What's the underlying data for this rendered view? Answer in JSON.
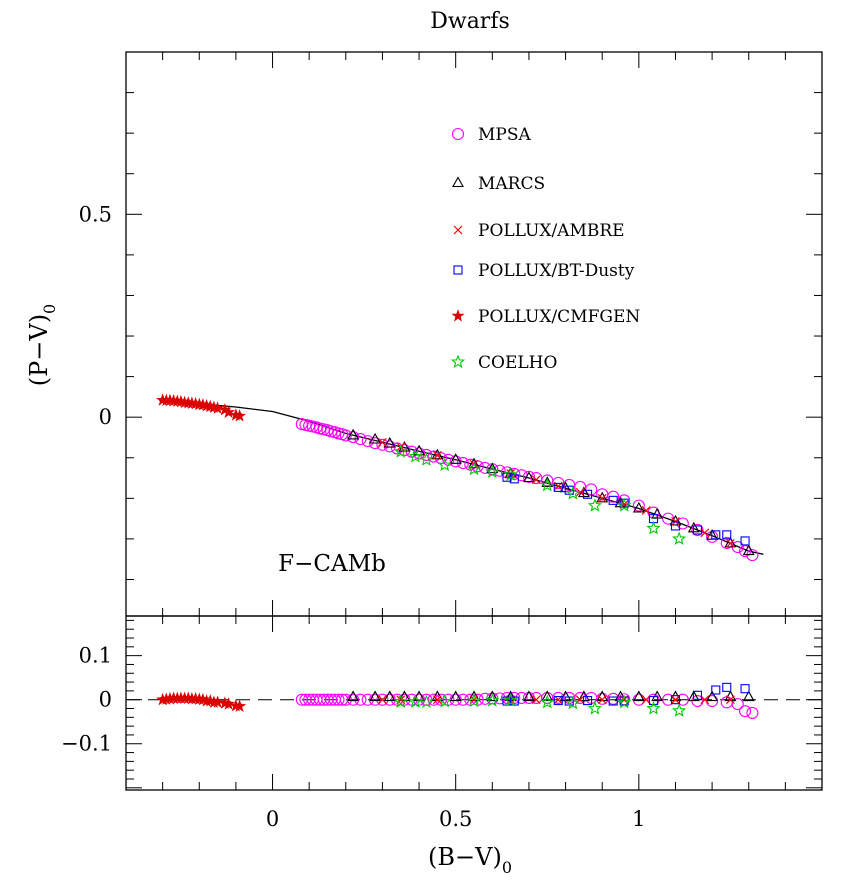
{
  "chart_data": {
    "type": "scatter",
    "title": "Dwarfs",
    "xlabel": "(B−V)",
    "xlabel_sub": "0",
    "xlim": [
      -0.4,
      1.5
    ],
    "xticks": [
      {
        "v": 0,
        "label": "0"
      },
      {
        "v": 0.5,
        "label": "0.5"
      },
      {
        "v": 1,
        "label": "1"
      }
    ],
    "panels": {
      "main": {
        "ylabel": "(P−V)",
        "ylabel_sub": "0",
        "ylim": [
          -0.49,
          0.9
        ],
        "yticks": [
          {
            "v": 0,
            "label": "0"
          },
          {
            "v": 0.5,
            "label": "0.5"
          }
        ],
        "annotation": "F−CAMb"
      },
      "residual": {
        "ylim": [
          -0.205,
          0.19
        ],
        "yticks": [
          {
            "v": 0.1,
            "label": "0.1"
          },
          {
            "v": 0,
            "label": "0"
          },
          {
            "v": -0.1,
            "label": "−0.1"
          }
        ],
        "zero_line": "dashed"
      }
    },
    "fit_curve": {
      "x": [
        -0.31,
        -0.2,
        -0.1,
        0.0,
        0.1,
        0.2,
        0.3,
        0.4,
        0.5,
        0.6,
        0.7,
        0.8,
        0.9,
        1.0,
        1.1,
        1.2,
        1.3,
        1.34
      ],
      "y": [
        0.042,
        0.033,
        0.025,
        0.014,
        -0.01,
        -0.04,
        -0.062,
        -0.084,
        -0.105,
        -0.128,
        -0.15,
        -0.175,
        -0.2,
        -0.225,
        -0.257,
        -0.292,
        -0.33,
        -0.338
      ]
    },
    "series": [
      {
        "name": "MPSA",
        "marker": "circle",
        "color": "#ff00ff",
        "x": [
          0.08,
          0.09,
          0.1,
          0.11,
          0.12,
          0.13,
          0.14,
          0.15,
          0.16,
          0.17,
          0.18,
          0.19,
          0.2,
          0.22,
          0.24,
          0.26,
          0.28,
          0.3,
          0.32,
          0.34,
          0.36,
          0.38,
          0.4,
          0.42,
          0.44,
          0.46,
          0.48,
          0.5,
          0.52,
          0.54,
          0.56,
          0.58,
          0.6,
          0.62,
          0.64,
          0.66,
          0.68,
          0.7,
          0.72,
          0.75,
          0.78,
          0.81,
          0.84,
          0.87,
          0.9,
          0.93,
          0.96,
          1.0,
          1.04,
          1.08,
          1.12,
          1.16,
          1.2,
          1.24,
          1.27,
          1.29,
          1.31
        ],
        "y": [
          -0.017,
          -0.019,
          -0.021,
          -0.023,
          -0.025,
          -0.028,
          -0.03,
          -0.032,
          -0.035,
          -0.037,
          -0.04,
          -0.042,
          -0.045,
          -0.049,
          -0.054,
          -0.059,
          -0.064,
          -0.068,
          -0.072,
          -0.077,
          -0.081,
          -0.085,
          -0.089,
          -0.093,
          -0.097,
          -0.101,
          -0.105,
          -0.109,
          -0.113,
          -0.117,
          -0.121,
          -0.125,
          -0.128,
          -0.132,
          -0.136,
          -0.14,
          -0.143,
          -0.147,
          -0.15,
          -0.156,
          -0.162,
          -0.167,
          -0.172,
          -0.178,
          -0.19,
          -0.196,
          -0.205,
          -0.218,
          -0.235,
          -0.25,
          -0.262,
          -0.278,
          -0.295,
          -0.31,
          -0.32,
          -0.33,
          -0.34
        ],
        "residual": [
          0.0,
          0.0,
          0.0,
          0.0,
          0.0,
          0.0,
          0.0,
          0.0,
          0.0,
          0.0,
          0.0,
          0.0,
          0.0,
          0.0,
          0.0,
          0.0,
          0.0,
          0.0,
          0.0,
          0.0,
          0.0,
          0.0,
          0.0,
          0.0,
          0.0,
          0.0,
          0.0,
          0.0,
          0.0,
          0.0,
          0.0,
          0.002,
          0.003,
          0.003,
          0.004,
          0.004,
          0.004,
          0.004,
          0.004,
          0.004,
          0.004,
          0.004,
          0.004,
          0.004,
          0.002,
          0.002,
          0.001,
          0.0,
          0.0,
          0.0,
          0.0,
          -0.003,
          -0.003,
          -0.006,
          -0.01,
          -0.026,
          -0.03
        ]
      },
      {
        "name": "MARCS",
        "marker": "triangle",
        "color": "#000000",
        "x": [
          0.22,
          0.28,
          0.32,
          0.36,
          0.4,
          0.45,
          0.5,
          0.55,
          0.6,
          0.65,
          0.7,
          0.75,
          0.8,
          0.85,
          0.9,
          0.95,
          1.0,
          1.05,
          1.1,
          1.15,
          1.2,
          1.25,
          1.3
        ],
        "y": [
          -0.045,
          -0.055,
          -0.065,
          -0.075,
          -0.084,
          -0.094,
          -0.105,
          -0.116,
          -0.128,
          -0.139,
          -0.15,
          -0.162,
          -0.175,
          -0.187,
          -0.2,
          -0.212,
          -0.225,
          -0.24,
          -0.257,
          -0.274,
          -0.292,
          -0.311,
          -0.33
        ],
        "residual": [
          0.006,
          0.006,
          0.006,
          0.006,
          0.006,
          0.006,
          0.006,
          0.006,
          0.006,
          0.006,
          0.006,
          0.006,
          0.006,
          0.006,
          0.006,
          0.006,
          0.006,
          0.006,
          0.006,
          0.006,
          0.006,
          0.006,
          0.006
        ]
      },
      {
        "name": "POLLUX/AMBRE",
        "marker": "cross",
        "color": "#ff0000",
        "x": [
          0.3,
          0.35,
          0.45,
          0.55,
          0.65,
          0.72,
          0.78,
          0.84,
          0.9,
          0.96,
          1.02,
          1.1,
          1.18,
          1.25
        ],
        "y": [
          -0.062,
          -0.073,
          -0.094,
          -0.116,
          -0.139,
          -0.154,
          -0.17,
          -0.185,
          -0.2,
          -0.215,
          -0.23,
          -0.257,
          -0.285,
          -0.311
        ],
        "residual": [
          0.0,
          0.0,
          0.0,
          0.0,
          0.0,
          0.0,
          0.0,
          0.0,
          0.0,
          0.0,
          0.0,
          0.0,
          0.0,
          0.0
        ]
      },
      {
        "name": "POLLUX/BT-Dusty",
        "marker": "square",
        "color": "#0000ff",
        "x": [
          0.64,
          0.66,
          0.78,
          0.81,
          0.86,
          0.93,
          0.96,
          1.04,
          1.1,
          1.16,
          1.21,
          1.24,
          1.29
        ],
        "y": [
          -0.148,
          -0.152,
          -0.173,
          -0.18,
          -0.19,
          -0.205,
          -0.212,
          -0.25,
          -0.268,
          -0.278,
          -0.29,
          -0.29,
          -0.305
        ],
        "residual": [
          -0.003,
          -0.003,
          -0.002,
          -0.003,
          -0.002,
          -0.003,
          -0.003,
          -0.002,
          0.0,
          0.01,
          0.022,
          0.028,
          0.025
        ]
      },
      {
        "name": "POLLUX/CMFGEN",
        "marker": "star",
        "color": "#dd0000",
        "x": [
          -0.3,
          -0.29,
          -0.28,
          -0.27,
          -0.26,
          -0.25,
          -0.24,
          -0.23,
          -0.22,
          -0.21,
          -0.2,
          -0.19,
          -0.18,
          -0.17,
          -0.16,
          -0.15,
          -0.13,
          -0.12,
          -0.1,
          -0.09
        ],
        "y": [
          0.042,
          0.041,
          0.041,
          0.04,
          0.039,
          0.038,
          0.036,
          0.035,
          0.034,
          0.033,
          0.031,
          0.03,
          0.028,
          0.026,
          0.024,
          0.022,
          0.018,
          0.012,
          0.005,
          0.003
        ],
        "residual": [
          0.0,
          0.001,
          0.002,
          0.003,
          0.003,
          0.003,
          0.003,
          0.003,
          0.002,
          0.002,
          0.001,
          0.0,
          -0.003,
          -0.003,
          -0.006,
          -0.006,
          -0.008,
          -0.01,
          -0.014,
          -0.015
        ]
      },
      {
        "name": "COELHO",
        "marker": "star-open",
        "color": "#00cc00",
        "x": [
          0.35,
          0.39,
          0.42,
          0.47,
          0.55,
          0.6,
          0.65,
          0.75,
          0.82,
          0.88,
          0.96,
          1.04,
          1.11
        ],
        "y": [
          -0.085,
          -0.097,
          -0.105,
          -0.118,
          -0.128,
          -0.135,
          -0.142,
          -0.168,
          -0.188,
          -0.218,
          -0.218,
          -0.274,
          -0.3
        ],
        "residual": [
          -0.005,
          -0.005,
          -0.005,
          -0.004,
          -0.003,
          -0.002,
          -0.002,
          -0.006,
          -0.008,
          -0.02,
          -0.006,
          -0.02,
          -0.025
        ]
      }
    ]
  }
}
